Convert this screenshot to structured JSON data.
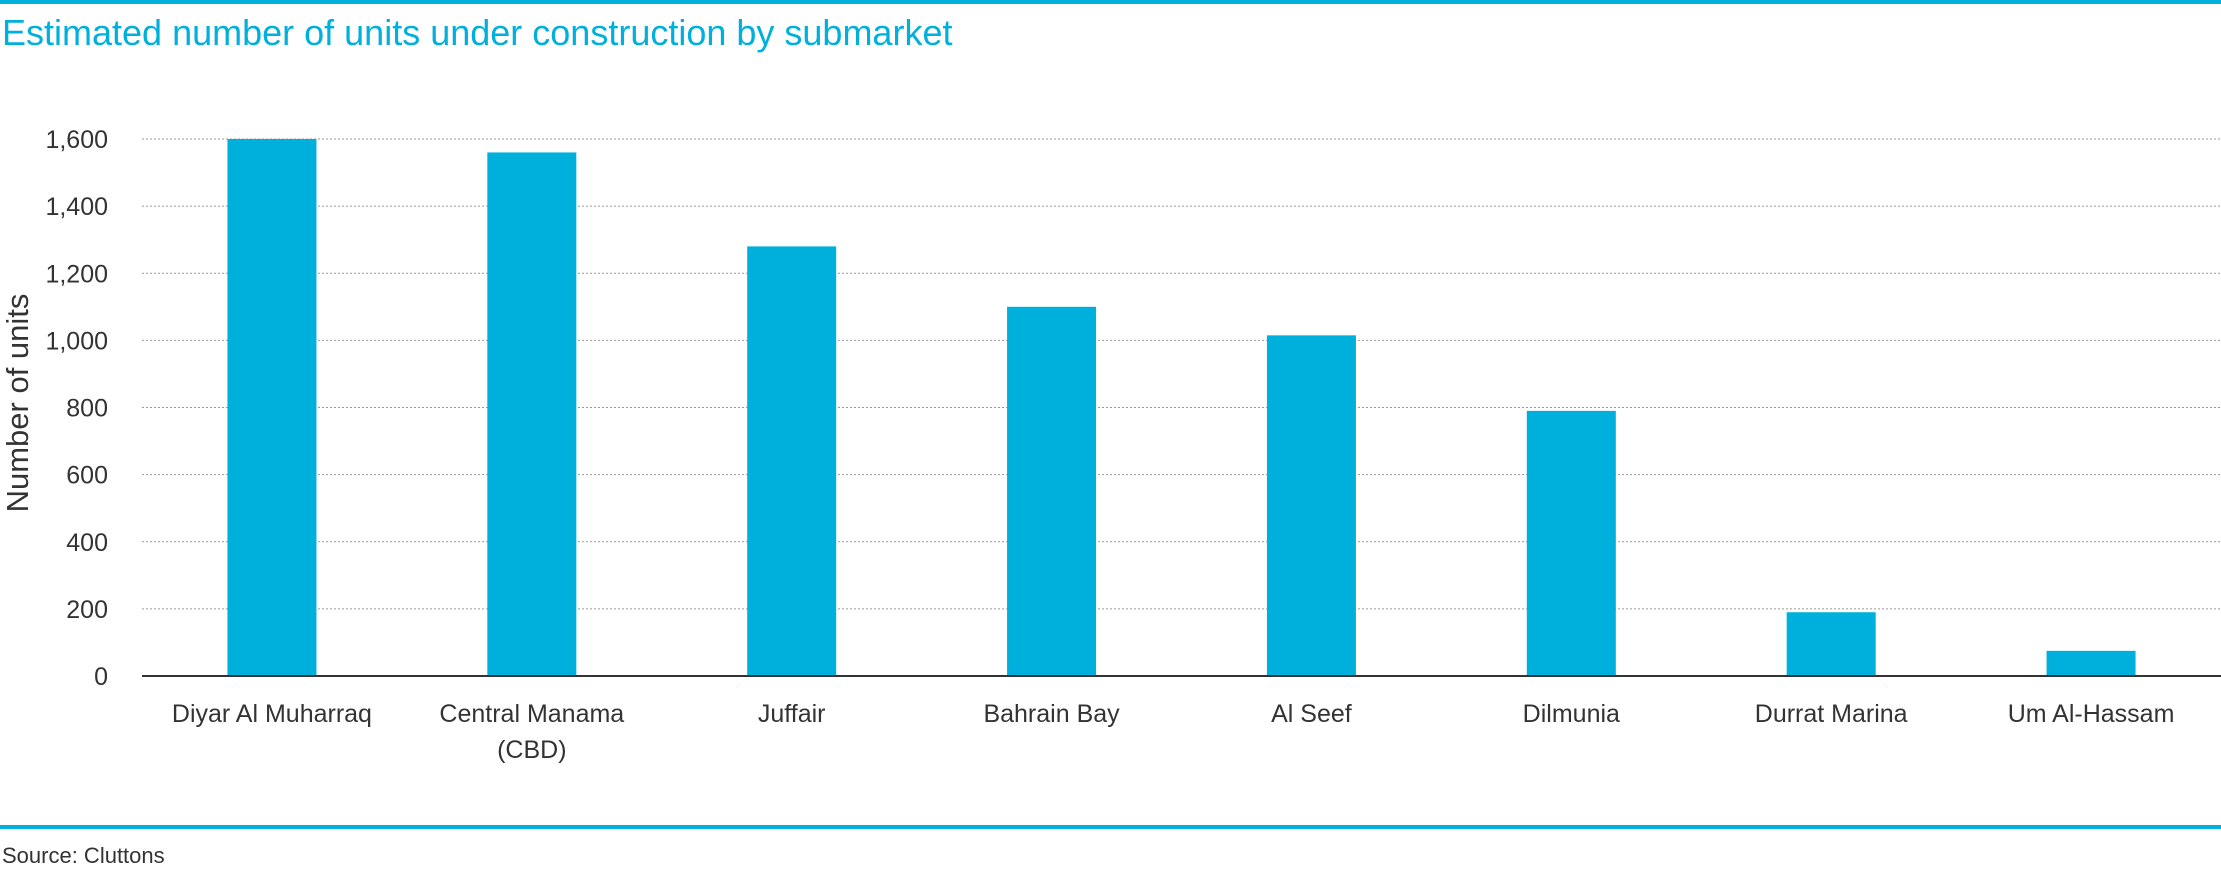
{
  "title": "Estimated number of units under construction by submarket",
  "source": "Source: Cluttons",
  "colors": {
    "bar": "#00b0dc",
    "accent_rule": "#00b0dc",
    "gridline": "#999999",
    "axis": "#333333",
    "text": "#333333"
  },
  "chart_data": {
    "type": "bar",
    "title": "Estimated number of units under construction by submarket",
    "xlabel": "",
    "ylabel": "Number of units",
    "ylim": [
      0,
      1600
    ],
    "yticks": [
      0,
      200,
      400,
      600,
      800,
      1000,
      1200,
      1400,
      1600
    ],
    "ytick_labels": [
      "0",
      "200",
      "400",
      "600",
      "800",
      "1,000",
      "1,200",
      "1,400",
      "1,600"
    ],
    "grid": true,
    "legend": "none",
    "categories": [
      [
        "Diyar Al Muharraq"
      ],
      [
        "Central Manama",
        "(CBD)"
      ],
      [
        "Juffair"
      ],
      [
        "Bahrain Bay"
      ],
      [
        "Al Seef"
      ],
      [
        "Dilmunia"
      ],
      [
        "Durrat Marina"
      ],
      [
        "Um Al-Hassam"
      ]
    ],
    "values": [
      1600,
      1560,
      1280,
      1100,
      1015,
      790,
      190,
      75
    ]
  }
}
